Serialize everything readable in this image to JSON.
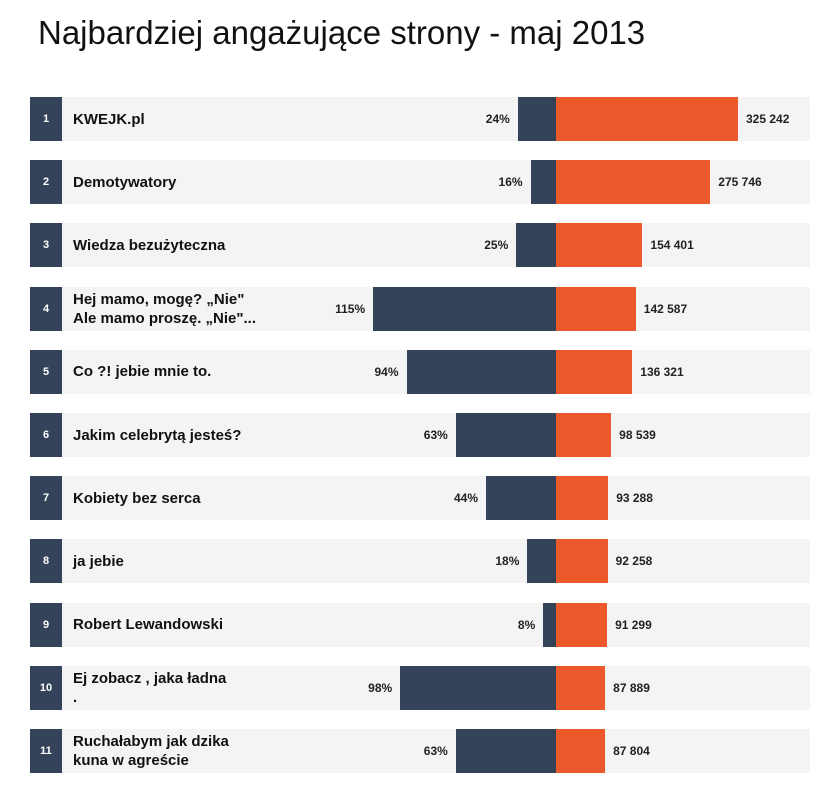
{
  "chart_data": {
    "type": "bar",
    "title": "Najbardziej angażujące strony - maj 2013",
    "categories": [
      "KWEJK.pl",
      "Demotywatory",
      "Wiedza bezużyteczna",
      "Hej mamo, mogę? „Nie\"\nAle mamo proszę. „Nie\"...",
      "Co ?! jebie mnie to.",
      "Jakim celebrytą jesteś?",
      "Kobiety bez serca",
      "ja jebie",
      "Robert Lewandowski",
      "Ej zobacz , jaka ładna\n.",
      "Ruchałabym jak dzika\nkuna w agreście"
    ],
    "ranks": [
      "1",
      "2",
      "3",
      "4",
      "5",
      "6",
      "7",
      "8",
      "9",
      "10",
      "11"
    ],
    "series": [
      {
        "name": "engagement_percent",
        "values": [
          24,
          16,
          25,
          115,
          94,
          63,
          44,
          18,
          8,
          98,
          63
        ],
        "labels": [
          "24%",
          "16%",
          "25%",
          "115%",
          "94%",
          "63%",
          "44%",
          "18%",
          "8%",
          "98%",
          "63%"
        ],
        "color": "#34435a"
      },
      {
        "name": "count",
        "values": [
          325242,
          275746,
          154401,
          142587,
          136321,
          98539,
          93288,
          92258,
          91299,
          87889,
          87804
        ],
        "labels": [
          "325 242",
          "275 746",
          "154 401",
          "142 587",
          "136 321",
          "98 539",
          "93 288",
          "92 258",
          "91 299",
          "87 889",
          "87 804"
        ],
        "color": "#ec5a2c"
      }
    ]
  }
}
